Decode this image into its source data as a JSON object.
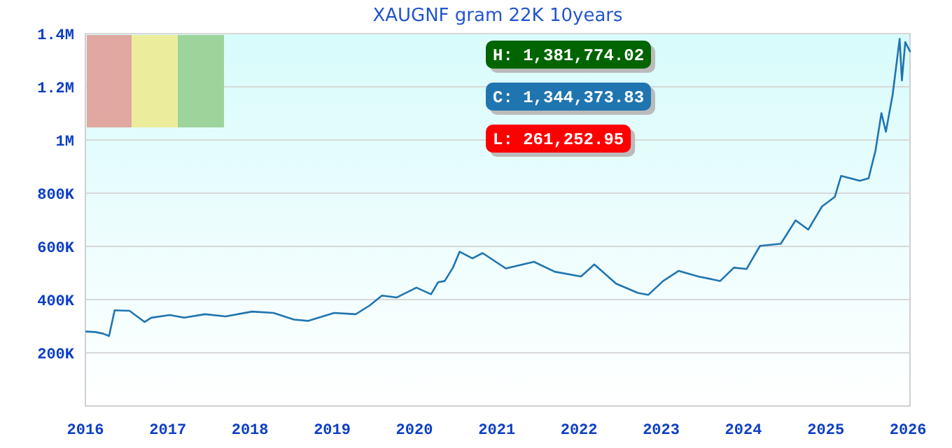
{
  "chart_data": {
    "type": "line",
    "title": "XAUGNF gram 22K 10years",
    "x": [
      "2016-01-05",
      "2016-02-15",
      "2016-03-20",
      "2016-04-15",
      "2016-05-10",
      "2016-07-15",
      "2016-09-20",
      "2016-10-20",
      "2017-01-10",
      "2017-03-15",
      "2017-06-15",
      "2017-09-15",
      "2018-01-10",
      "2018-04-15",
      "2018-07-15",
      "2018-09-15",
      "2019-01-10",
      "2019-04-15",
      "2019-06-15",
      "2019-08-10",
      "2019-10-15",
      "2020-01-10",
      "2020-03-15",
      "2020-04-15",
      "2020-05-15",
      "2020-06-20",
      "2020-07-20",
      "2020-09-15",
      "2020-10-30",
      "2021-02-10",
      "2021-06-15",
      "2021-09-15",
      "2022-01-10",
      "2022-03-10",
      "2022-06-15",
      "2022-09-20",
      "2022-11-05",
      "2023-01-10",
      "2023-03-20",
      "2023-06-15",
      "2023-09-20",
      "2023-11-20",
      "2024-01-15",
      "2024-03-15",
      "2024-06-15",
      "2024-08-20",
      "2024-10-15",
      "2024-12-15",
      "2025-02-10",
      "2025-03-10",
      "2025-06-01",
      "2025-07-10",
      "2025-08-10",
      "2025-09-05",
      "2025-09-25",
      "2025-10-25",
      "2025-11-25",
      "2025-12-05",
      "2025-12-20",
      "2026-01-10"
    ],
    "series": [
      {
        "color": "#1f75b0",
        "values": [
          280000,
          278000,
          272000,
          263000,
          360000,
          358000,
          316000,
          332000,
          342000,
          332000,
          345000,
          337000,
          355000,
          350000,
          325000,
          320000,
          350000,
          345000,
          377000,
          415000,
          408000,
          445000,
          420000,
          465000,
          470000,
          520000,
          580000,
          555000,
          575000,
          517000,
          542000,
          505000,
          487000,
          532000,
          460000,
          425000,
          418000,
          470000,
          508000,
          487000,
          470000,
          520000,
          515000,
          602000,
          610000,
          698000,
          663000,
          750000,
          786000,
          865000,
          847000,
          856000,
          961000,
          1101000,
          1031000,
          1171000,
          1380000,
          1224000,
          1368000,
          1333000
        ]
      }
    ],
    "xlim": [
      "2016-01-01",
      "2026-01-10"
    ],
    "xticks": [
      "2016",
      "2017",
      "2018",
      "2019",
      "2020",
      "2021",
      "2022",
      "2023",
      "2024",
      "2025",
      "2026"
    ],
    "ylim": [
      0,
      1400000
    ],
    "yticks": [
      {
        "value": 200000,
        "label": "200K"
      },
      {
        "value": 400000,
        "label": "400K"
      },
      {
        "value": 600000,
        "label": "600K"
      },
      {
        "value": 800000,
        "label": "800K"
      },
      {
        "value": 1000000,
        "label": "1M"
      },
      {
        "value": 1200000,
        "label": "1.2M"
      },
      {
        "value": 1400000,
        "label": "1.4M"
      }
    ],
    "grid": "y",
    "annotations": [
      "H: 1,381,774.02",
      "C: 1,344,373.83",
      "L: 261,252.95"
    ]
  }
}
